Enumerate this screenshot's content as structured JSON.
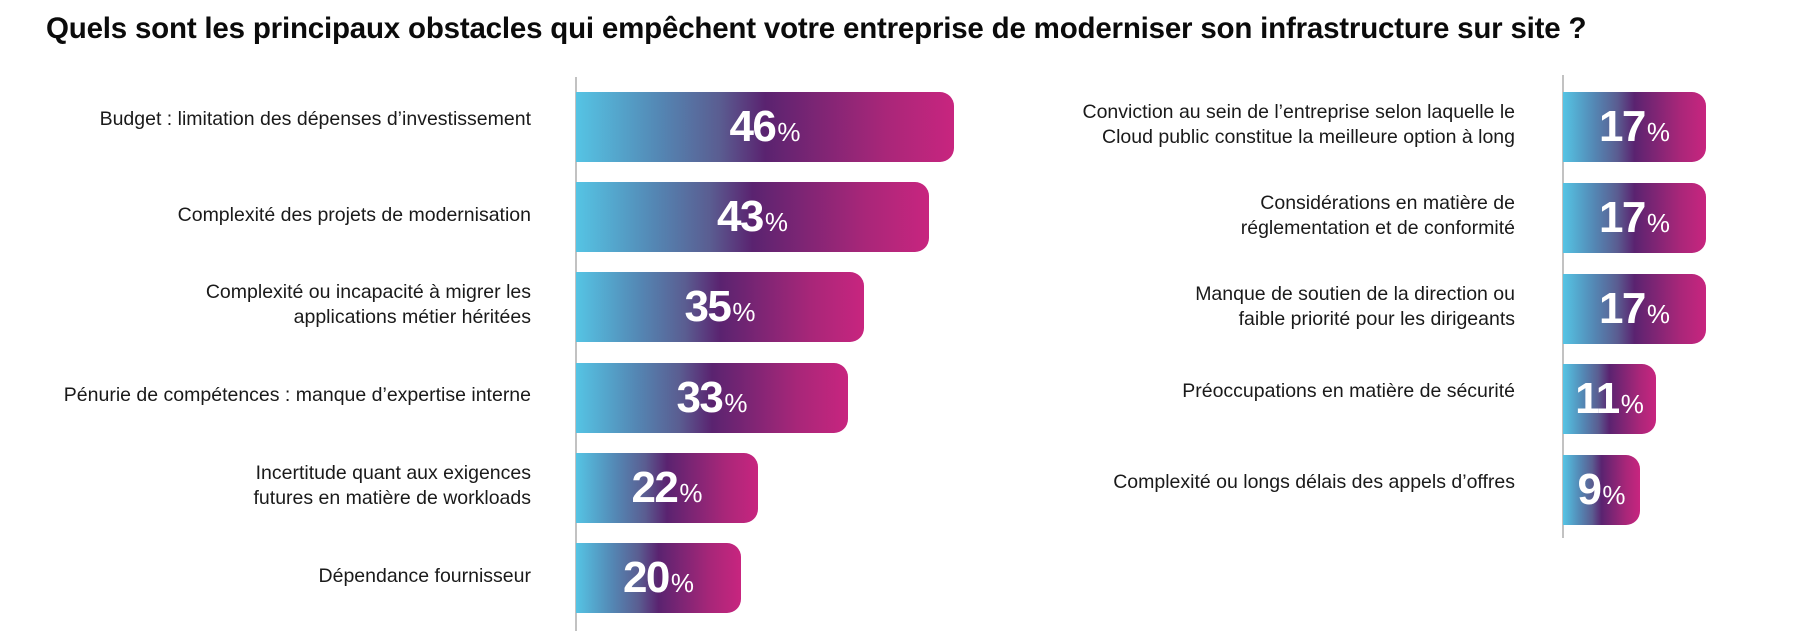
{
  "title": "Quels sont les principaux obstacles qui empêchent votre entreprise de moderniser son infrastructure sur site ?",
  "colors": {
    "gradient_start": "#55c4e4",
    "gradient_mid": "#5a2370",
    "gradient_end": "#c8257f",
    "axis": "#c2c2c2",
    "value_text": "#ffffff"
  },
  "chart_data": {
    "type": "bar",
    "orientation": "horizontal",
    "title": "Quels sont les principaux obstacles qui empêchent votre entreprise de moderniser son infrastructure sur site ?",
    "unit": "%",
    "xlabel": "",
    "ylabel": "",
    "xlim": [
      0,
      50
    ],
    "grid": false,
    "legend": "none",
    "panels": [
      {
        "name": "left",
        "categories": [
          "Budget : limitation des dépenses d’investissement",
          "Complexité des projets de modernisation",
          "Complexité ou incapacité à migrer les applications métier héritées",
          "Pénurie de compétences : manque d’expertise interne",
          "Incertitude quant aux exigences futures en matière de workloads",
          "Dépendance fournisseur"
        ],
        "label_lines": [
          [
            "Budget : limitation des dépenses d’investissement"
          ],
          [
            "Complexité des projets de modernisation"
          ],
          [
            "Complexité ou incapacité à migrer les",
            "applications métier héritées"
          ],
          [
            "Pénurie de compétences : manque d’expertise interne"
          ],
          [
            "Incertitude quant aux exigences",
            "futures en matière de workloads"
          ],
          [
            "Dépendance fournisseur"
          ]
        ],
        "values": [
          46,
          43,
          35,
          33,
          22,
          20
        ]
      },
      {
        "name": "right",
        "categories": [
          "Conviction au sein de l’entreprise selon laquelle le Cloud public constitue la meilleure option à long",
          "Considérations en matière de réglementation et de conformité",
          "Manque de soutien de la direction ou faible priorité pour les dirigeants",
          "Préoccupations en matière de sécurité",
          "Complexité ou longs délais des appels d’offres"
        ],
        "label_lines": [
          [
            "Conviction au sein de l’entreprise selon laquelle le",
            "Cloud public constitue la meilleure option à long"
          ],
          [
            "Considérations en matière de",
            "réglementation et de conformité"
          ],
          [
            "Manque de soutien de la direction ou",
            "faible priorité pour les dirigeants"
          ],
          [
            "Préoccupations en matière de sécurité"
          ],
          [
            "Complexité ou longs délais des appels d’offres"
          ]
        ],
        "values": [
          17,
          17,
          17,
          11,
          9
        ]
      }
    ]
  }
}
